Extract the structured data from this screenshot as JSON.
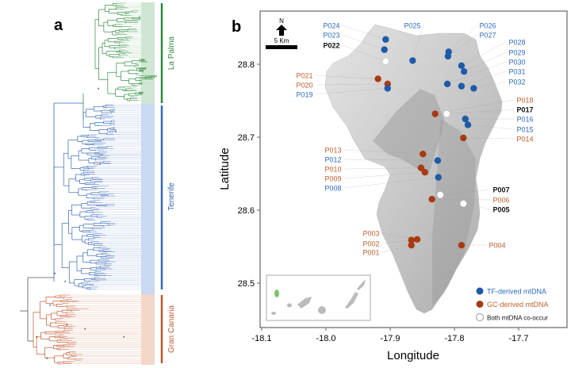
{
  "panel_a": {
    "label": "a",
    "clades": [
      {
        "name": "La Palma",
        "color": "#2e8b3e"
      },
      {
        "name": "Tenerife",
        "color": "#3567b5"
      },
      {
        "name": "Gran Canaria",
        "color": "#c0572c"
      }
    ]
  },
  "panel_b": {
    "label": "b",
    "xlabel": "Longitude",
    "ylabel": "Latitude",
    "xticks": [
      "-18.1",
      "-18.0",
      "-17.9",
      "-17.8",
      "-17.7"
    ],
    "yticks": [
      "28.8",
      "28.7",
      "28.6",
      "28.5"
    ],
    "north_label": "N",
    "scale_label": "5 Km",
    "colors": {
      "tf": "#1f5aa8",
      "gc": "#a83a12",
      "both": "#ffffff",
      "tf_text": "#2f6bbf",
      "gc_text": "#c0602e",
      "both_text": "#111111"
    },
    "legend": [
      {
        "type": "tf",
        "label": "TF-derived mtDNA"
      },
      {
        "type": "gc",
        "label": "GC-derived mtDNA"
      },
      {
        "type": "both",
        "label": "Both mtDNA co-occur"
      }
    ],
    "sites": [
      {
        "id": "P024",
        "type": "tf"
      },
      {
        "id": "P023",
        "type": "tf"
      },
      {
        "id": "P022",
        "type": "both"
      },
      {
        "id": "P025",
        "type": "tf"
      },
      {
        "id": "P026",
        "type": "tf"
      },
      {
        "id": "P027",
        "type": "tf"
      },
      {
        "id": "P028",
        "type": "tf"
      },
      {
        "id": "P029",
        "type": "tf"
      },
      {
        "id": "P030",
        "type": "tf"
      },
      {
        "id": "P031",
        "type": "tf"
      },
      {
        "id": "P032",
        "type": "tf"
      },
      {
        "id": "P021",
        "type": "gc"
      },
      {
        "id": "P020",
        "type": "gc"
      },
      {
        "id": "P019",
        "type": "tf"
      },
      {
        "id": "P018",
        "type": "gc"
      },
      {
        "id": "P017",
        "type": "both"
      },
      {
        "id": "P016",
        "type": "tf"
      },
      {
        "id": "P015",
        "type": "tf"
      },
      {
        "id": "P014",
        "type": "gc"
      },
      {
        "id": "P013",
        "type": "gc"
      },
      {
        "id": "P012",
        "type": "tf"
      },
      {
        "id": "P010",
        "type": "gc"
      },
      {
        "id": "P009",
        "type": "gc"
      },
      {
        "id": "P008",
        "type": "tf"
      },
      {
        "id": "P007",
        "type": "both"
      },
      {
        "id": "P006",
        "type": "gc"
      },
      {
        "id": "P005",
        "type": "both"
      },
      {
        "id": "P003",
        "type": "gc"
      },
      {
        "id": "P002",
        "type": "gc"
      },
      {
        "id": "P001",
        "type": "gc"
      },
      {
        "id": "P004",
        "type": "gc"
      }
    ]
  }
}
